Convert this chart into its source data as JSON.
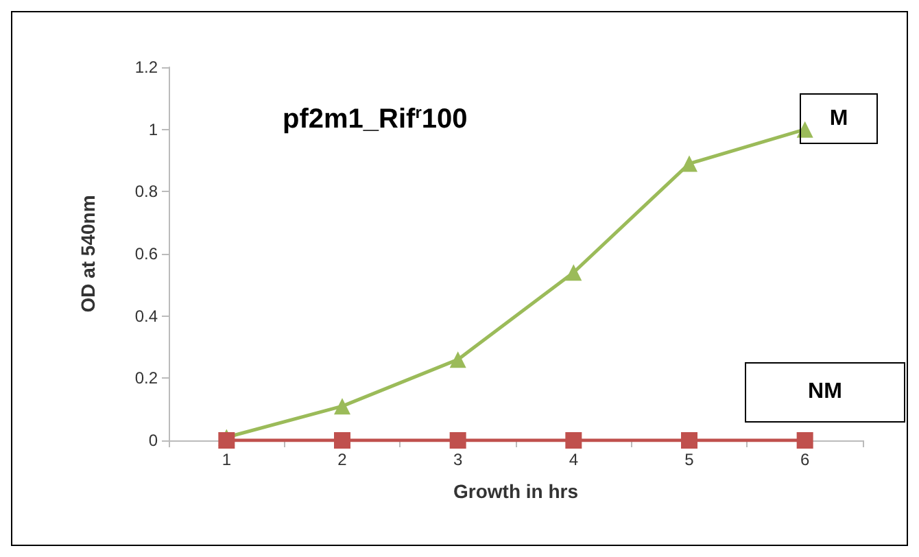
{
  "chart_data": {
    "type": "line",
    "title": "pf2m1_Rif$^{r}$100",
    "xlabel": "Growth in hrs",
    "ylabel": "OD at 540nm",
    "categories": [
      "1",
      "2",
      "3",
      "4",
      "5",
      "6"
    ],
    "series": [
      {
        "name": "M",
        "color": "#9bbb59",
        "marker": "triangle",
        "values": [
          0.01,
          0.11,
          0.26,
          0.54,
          0.89,
          1.0
        ]
      },
      {
        "name": "NM",
        "color": "#c0504d",
        "marker": "square",
        "values": [
          0,
          0,
          0,
          0,
          0,
          0
        ]
      }
    ],
    "ylim": [
      0,
      1.2
    ],
    "yticks": [
      0,
      0.2,
      0.4,
      0.6,
      0.8,
      1,
      1.2
    ],
    "grid": false,
    "legend": false
  }
}
